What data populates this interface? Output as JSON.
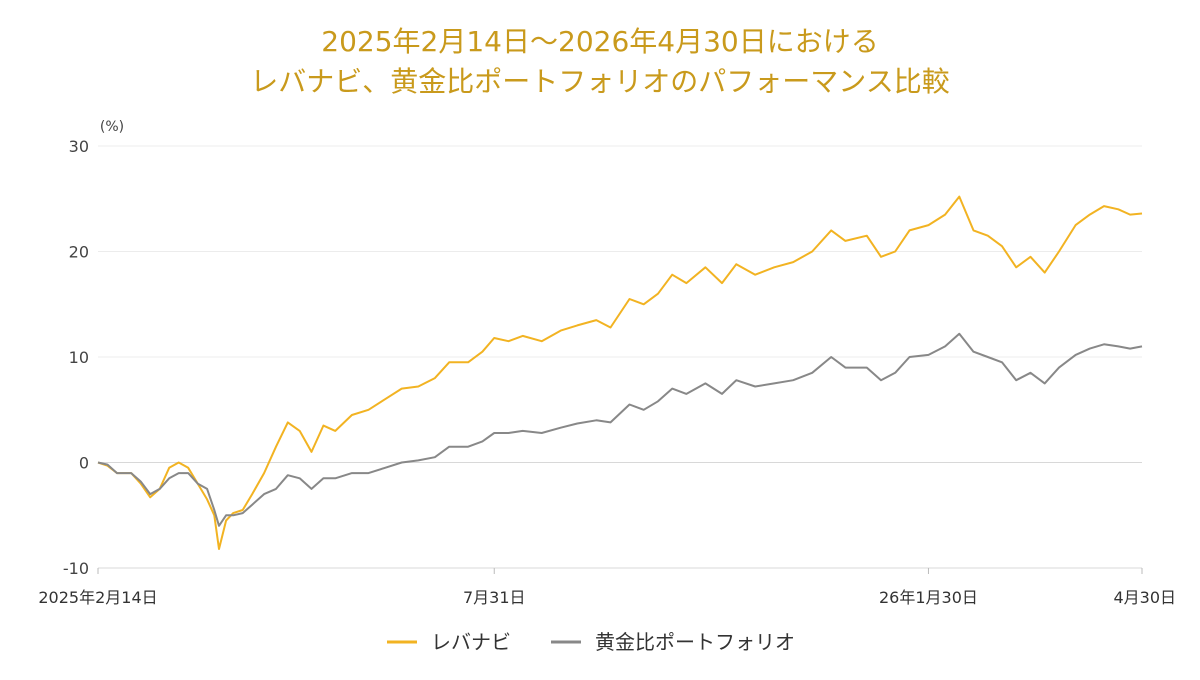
{
  "chart_data": {
    "type": "line",
    "title_line1": "2025年2月14日〜2026年4月30日における",
    "title_line2": "レバナビ、黄金比ポートフォリオのパフォーマンス比較",
    "y_unit": "(%)",
    "ylim": [
      -10,
      30
    ],
    "yticks": [
      30,
      20,
      10,
      0,
      -10
    ],
    "x_range": [
      "2025-02-14",
      "2026-04-30"
    ],
    "x_ticks": [
      {
        "date": "2025-02-14",
        "label": "2025年2月14日"
      },
      {
        "date": "2025-07-31",
        "label": "7月31日"
      },
      {
        "date": "2026-01-30",
        "label": "26年1月30日"
      },
      {
        "date": "2026-04-30",
        "label": "4月30日"
      }
    ],
    "grid": true,
    "legend_position": "bottom",
    "series": [
      {
        "name": "レバナビ",
        "color": "#f2b322",
        "points": [
          [
            "2025-02-14",
            0
          ],
          [
            "2025-02-18",
            -0.3
          ],
          [
            "2025-02-22",
            -1.0
          ],
          [
            "2025-02-28",
            -1.0
          ],
          [
            "2025-03-04",
            -2.0
          ],
          [
            "2025-03-08",
            -3.3
          ],
          [
            "2025-03-12",
            -2.5
          ],
          [
            "2025-03-16",
            -0.5
          ],
          [
            "2025-03-20",
            0
          ],
          [
            "2025-03-24",
            -0.5
          ],
          [
            "2025-03-28",
            -2.0
          ],
          [
            "2025-04-01",
            -3.5
          ],
          [
            "2025-04-04",
            -5.0
          ],
          [
            "2025-04-06",
            -8.2
          ],
          [
            "2025-04-09",
            -5.5
          ],
          [
            "2025-04-12",
            -4.8
          ],
          [
            "2025-04-16",
            -4.5
          ],
          [
            "2025-04-20",
            -3.0
          ],
          [
            "2025-04-25",
            -1.0
          ],
          [
            "2025-04-30",
            1.5
          ],
          [
            "2025-05-05",
            3.8
          ],
          [
            "2025-05-10",
            3.0
          ],
          [
            "2025-05-15",
            1.0
          ],
          [
            "2025-05-20",
            3.5
          ],
          [
            "2025-05-25",
            3.0
          ],
          [
            "2025-06-01",
            4.5
          ],
          [
            "2025-06-08",
            5.0
          ],
          [
            "2025-06-15",
            6.0
          ],
          [
            "2025-06-22",
            7.0
          ],
          [
            "2025-06-29",
            7.2
          ],
          [
            "2025-07-06",
            8.0
          ],
          [
            "2025-07-12",
            9.5
          ],
          [
            "2025-07-20",
            9.5
          ],
          [
            "2025-07-26",
            10.5
          ],
          [
            "2025-07-31",
            11.8
          ],
          [
            "2025-08-06",
            11.5
          ],
          [
            "2025-08-12",
            12.0
          ],
          [
            "2025-08-20",
            11.5
          ],
          [
            "2025-08-28",
            12.5
          ],
          [
            "2025-09-04",
            13.0
          ],
          [
            "2025-09-12",
            13.5
          ],
          [
            "2025-09-18",
            12.8
          ],
          [
            "2025-09-26",
            15.5
          ],
          [
            "2025-10-02",
            15.0
          ],
          [
            "2025-10-08",
            16.0
          ],
          [
            "2025-10-14",
            17.8
          ],
          [
            "2025-10-20",
            17.0
          ],
          [
            "2025-10-28",
            18.5
          ],
          [
            "2025-11-04",
            17.0
          ],
          [
            "2025-11-10",
            18.8
          ],
          [
            "2025-11-18",
            17.8
          ],
          [
            "2025-11-26",
            18.5
          ],
          [
            "2025-12-04",
            19.0
          ],
          [
            "2025-12-12",
            20.0
          ],
          [
            "2025-12-20",
            22.0
          ],
          [
            "2025-12-26",
            21.0
          ],
          [
            "2026-01-04",
            21.5
          ],
          [
            "2026-01-10",
            19.5
          ],
          [
            "2026-01-16",
            20.0
          ],
          [
            "2026-01-22",
            22.0
          ],
          [
            "2026-01-30",
            22.5
          ],
          [
            "2026-02-06",
            23.5
          ],
          [
            "2026-02-12",
            25.2
          ],
          [
            "2026-02-18",
            22.0
          ],
          [
            "2026-02-24",
            21.5
          ],
          [
            "2026-03-02",
            20.5
          ],
          [
            "2026-03-08",
            18.5
          ],
          [
            "2026-03-14",
            19.5
          ],
          [
            "2026-03-20",
            18.0
          ],
          [
            "2026-03-26",
            20.0
          ],
          [
            "2026-04-02",
            22.5
          ],
          [
            "2026-04-08",
            23.5
          ],
          [
            "2026-04-14",
            24.3
          ],
          [
            "2026-04-20",
            24.0
          ],
          [
            "2026-04-25",
            23.5
          ],
          [
            "2026-04-30",
            23.6
          ]
        ]
      },
      {
        "name": "黄金比ポートフォリオ",
        "color": "#888888",
        "points": [
          [
            "2025-02-14",
            0
          ],
          [
            "2025-02-18",
            -0.2
          ],
          [
            "2025-02-22",
            -1.0
          ],
          [
            "2025-02-28",
            -1.0
          ],
          [
            "2025-03-04",
            -1.8
          ],
          [
            "2025-03-08",
            -3.0
          ],
          [
            "2025-03-12",
            -2.5
          ],
          [
            "2025-03-16",
            -1.5
          ],
          [
            "2025-03-20",
            -1.0
          ],
          [
            "2025-03-24",
            -1.0
          ],
          [
            "2025-03-28",
            -2.0
          ],
          [
            "2025-04-01",
            -2.5
          ],
          [
            "2025-04-04",
            -4.5
          ],
          [
            "2025-04-06",
            -6.0
          ],
          [
            "2025-04-09",
            -5.0
          ],
          [
            "2025-04-12",
            -5.0
          ],
          [
            "2025-04-16",
            -4.8
          ],
          [
            "2025-04-20",
            -4.0
          ],
          [
            "2025-04-25",
            -3.0
          ],
          [
            "2025-04-30",
            -2.5
          ],
          [
            "2025-05-05",
            -1.2
          ],
          [
            "2025-05-10",
            -1.5
          ],
          [
            "2025-05-15",
            -2.5
          ],
          [
            "2025-05-20",
            -1.5
          ],
          [
            "2025-05-25",
            -1.5
          ],
          [
            "2025-06-01",
            -1.0
          ],
          [
            "2025-06-08",
            -1.0
          ],
          [
            "2025-06-15",
            -0.5
          ],
          [
            "2025-06-22",
            0
          ],
          [
            "2025-06-29",
            0.2
          ],
          [
            "2025-07-06",
            0.5
          ],
          [
            "2025-07-12",
            1.5
          ],
          [
            "2025-07-20",
            1.5
          ],
          [
            "2025-07-26",
            2.0
          ],
          [
            "2025-07-31",
            2.8
          ],
          [
            "2025-08-06",
            2.8
          ],
          [
            "2025-08-12",
            3.0
          ],
          [
            "2025-08-20",
            2.8
          ],
          [
            "2025-08-28",
            3.3
          ],
          [
            "2025-09-04",
            3.7
          ],
          [
            "2025-09-12",
            4.0
          ],
          [
            "2025-09-18",
            3.8
          ],
          [
            "2025-09-26",
            5.5
          ],
          [
            "2025-10-02",
            5.0
          ],
          [
            "2025-10-08",
            5.8
          ],
          [
            "2025-10-14",
            7.0
          ],
          [
            "2025-10-20",
            6.5
          ],
          [
            "2025-10-28",
            7.5
          ],
          [
            "2025-11-04",
            6.5
          ],
          [
            "2025-11-10",
            7.8
          ],
          [
            "2025-11-18",
            7.2
          ],
          [
            "2025-11-26",
            7.5
          ],
          [
            "2025-12-04",
            7.8
          ],
          [
            "2025-12-12",
            8.5
          ],
          [
            "2025-12-20",
            10.0
          ],
          [
            "2025-12-26",
            9.0
          ],
          [
            "2026-01-04",
            9.0
          ],
          [
            "2026-01-10",
            7.8
          ],
          [
            "2026-01-16",
            8.5
          ],
          [
            "2026-01-22",
            10.0
          ],
          [
            "2026-01-30",
            10.2
          ],
          [
            "2026-02-06",
            11.0
          ],
          [
            "2026-02-12",
            12.2
          ],
          [
            "2026-02-18",
            10.5
          ],
          [
            "2026-02-24",
            10.0
          ],
          [
            "2026-03-02",
            9.5
          ],
          [
            "2026-03-08",
            7.8
          ],
          [
            "2026-03-14",
            8.5
          ],
          [
            "2026-03-20",
            7.5
          ],
          [
            "2026-03-26",
            9.0
          ],
          [
            "2026-04-02",
            10.2
          ],
          [
            "2026-04-08",
            10.8
          ],
          [
            "2026-04-14",
            11.2
          ],
          [
            "2026-04-20",
            11.0
          ],
          [
            "2026-04-25",
            10.8
          ],
          [
            "2026-04-30",
            11.0
          ]
        ]
      }
    ]
  }
}
